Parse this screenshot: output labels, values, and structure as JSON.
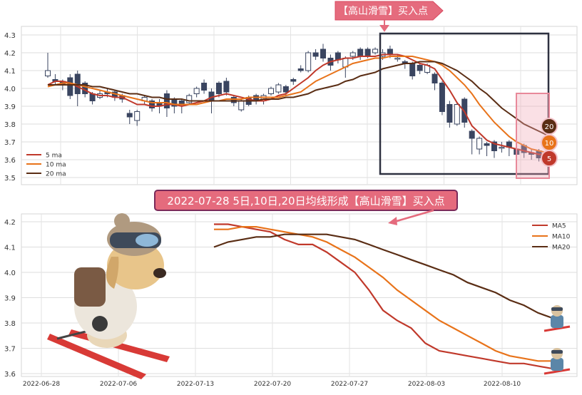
{
  "banner_top": "【高山滑雪】买入点",
  "banner_mid": "2022-07-28 5日,10日,20日均线形成【高山滑雪】买入点",
  "badges": [
    "20",
    "10",
    "5"
  ],
  "colors": {
    "ma5": "#c0392b",
    "ma10": "#e8731a",
    "ma20": "#5a2d14",
    "candle_dark": "#3a4560",
    "banner_fill": "#e56b7d",
    "box_dark": "#2e3140",
    "box_pink": "#f0a7b4"
  },
  "chart_data": [
    {
      "type": "candlestick",
      "yticks": [
        "3.5",
        "3.6",
        "3.7",
        "3.8",
        "3.9",
        "4.0",
        "4.1",
        "4.2",
        "4.3"
      ],
      "ylim": [
        3.46,
        4.33
      ],
      "legend": [
        "5 ma",
        "10 ma",
        "20 ma"
      ],
      "legend_position": "lower-left",
      "grid": true,
      "candles": [
        [
          4.07,
          4.1,
          4.2,
          4.06
        ],
        [
          4.05,
          4.04,
          4.08,
          4.02
        ],
        [
          4.04,
          4.02,
          4.05,
          3.99
        ],
        [
          4.06,
          3.96,
          4.08,
          3.94
        ],
        [
          4.08,
          3.97,
          4.1,
          3.9
        ],
        [
          4.03,
          3.97,
          4.04,
          3.95
        ],
        [
          3.97,
          3.93,
          3.98,
          3.91
        ],
        [
          3.95,
          3.97,
          3.99,
          3.94
        ],
        [
          3.98,
          3.97,
          4.0,
          3.95
        ],
        [
          3.98,
          3.95,
          3.99,
          3.93
        ],
        [
          3.96,
          3.94,
          3.97,
          3.92
        ],
        [
          3.86,
          3.84,
          3.88,
          3.8
        ],
        [
          3.82,
          3.87,
          3.88,
          3.79
        ],
        [
          3.93,
          3.95,
          3.96,
          3.91
        ],
        [
          3.93,
          3.89,
          3.94,
          3.87
        ],
        [
          3.92,
          3.9,
          3.94,
          3.86
        ],
        [
          3.97,
          3.89,
          3.99,
          3.84
        ],
        [
          3.94,
          3.9,
          3.95,
          3.86
        ],
        [
          3.93,
          3.91,
          3.94,
          3.86
        ],
        [
          3.92,
          3.96,
          3.97,
          3.91
        ],
        [
          3.97,
          4.0,
          4.01,
          3.95
        ],
        [
          4.03,
          3.99,
          4.05,
          3.97
        ],
        [
          3.98,
          3.93,
          4.0,
          3.86
        ],
        [
          4.03,
          3.97,
          4.04,
          3.95
        ],
        [
          4.04,
          3.98,
          4.06,
          3.96
        ],
        [
          3.95,
          3.92,
          3.96,
          3.9
        ],
        [
          3.88,
          3.93,
          3.94,
          3.87
        ],
        [
          3.95,
          3.91,
          3.96,
          3.9
        ],
        [
          3.96,
          3.93,
          3.97,
          3.91
        ],
        [
          3.93,
          3.96,
          3.97,
          3.91
        ],
        [
          3.97,
          4.0,
          4.01,
          3.96
        ],
        [
          3.98,
          4.02,
          4.03,
          3.97
        ],
        [
          4.01,
          3.98,
          4.02,
          3.96
        ],
        [
          4.05,
          4.04,
          4.06,
          4.02
        ],
        [
          4.11,
          4.1,
          4.13,
          4.09
        ],
        [
          4.1,
          4.2,
          4.21,
          4.09
        ],
        [
          4.2,
          4.18,
          4.22,
          4.16
        ],
        [
          4.22,
          4.17,
          4.25,
          4.15
        ],
        [
          4.17,
          4.13,
          4.19,
          4.1
        ],
        [
          4.2,
          4.16,
          4.21,
          4.14
        ],
        [
          4.12,
          4.17,
          4.18,
          4.06
        ],
        [
          4.18,
          4.2,
          4.21,
          4.16
        ],
        [
          4.22,
          4.18,
          4.23,
          4.16
        ],
        [
          4.22,
          4.18,
          4.23,
          4.17
        ],
        [
          4.2,
          4.22,
          4.23,
          4.19
        ],
        [
          4.18,
          4.2,
          4.22,
          4.16
        ],
        [
          4.22,
          4.19,
          4.24,
          4.17
        ],
        [
          4.17,
          4.17,
          4.19,
          4.15
        ],
        [
          4.15,
          4.14,
          4.16,
          4.11
        ],
        [
          4.14,
          4.07,
          4.15,
          4.05
        ],
        [
          4.13,
          4.1,
          4.14,
          4.08
        ],
        [
          4.09,
          4.13,
          4.14,
          4.08
        ],
        [
          4.08,
          4.03,
          4.09,
          3.99
        ],
        [
          4.03,
          3.87,
          4.04,
          3.85
        ],
        [
          3.91,
          3.81,
          3.93,
          3.78
        ],
        [
          3.8,
          3.91,
          3.92,
          3.79
        ],
        [
          3.94,
          3.81,
          3.95,
          3.78
        ],
        [
          3.76,
          3.72,
          3.77,
          3.63
        ],
        [
          3.66,
          3.72,
          3.73,
          3.63
        ],
        [
          3.69,
          3.68,
          3.7,
          3.62
        ],
        [
          3.7,
          3.65,
          3.71,
          3.61
        ],
        [
          3.67,
          3.67,
          3.7,
          3.64
        ],
        [
          3.7,
          3.67,
          3.71,
          3.62
        ],
        [
          3.66,
          3.63,
          3.7,
          3.61
        ],
        [
          3.68,
          3.64,
          3.69,
          3.61
        ],
        [
          3.64,
          3.63,
          3.66,
          3.6
        ],
        [
          3.65,
          3.61,
          3.66,
          3.59
        ],
        [
          3.64,
          3.63,
          3.65,
          3.61
        ]
      ],
      "series": [
        {
          "name": "5 ma",
          "values": [
            4.02,
            4.04,
            4.04,
            4.03,
            4.01,
            3.99,
            3.97,
            3.96,
            3.96,
            3.95,
            3.95,
            3.93,
            3.91,
            3.91,
            3.9,
            3.9,
            3.91,
            3.91,
            3.9,
            3.91,
            3.92,
            3.93,
            3.95,
            3.96,
            3.97,
            3.96,
            3.95,
            3.94,
            3.93,
            3.93,
            3.94,
            3.96,
            3.97,
            4.0,
            4.03,
            4.06,
            4.1,
            4.13,
            4.15,
            4.16,
            4.17,
            4.17,
            4.18,
            4.18,
            4.18,
            4.19,
            4.19,
            4.19,
            4.18,
            4.16,
            4.14,
            4.13,
            4.11,
            4.05,
            3.99,
            3.92,
            3.87,
            3.79,
            3.75,
            3.71,
            3.69,
            3.68,
            3.67,
            3.66,
            3.65,
            3.64,
            3.63,
            3.63
          ]
        },
        {
          "name": "10 ma",
          "values": [
            4.01,
            4.02,
            4.03,
            4.03,
            4.02,
            4.01,
            4.0,
            3.99,
            3.98,
            3.97,
            3.96,
            3.95,
            3.94,
            3.93,
            3.92,
            3.92,
            3.92,
            3.91,
            3.91,
            3.91,
            3.91,
            3.92,
            3.93,
            3.93,
            3.94,
            3.94,
            3.94,
            3.95,
            3.95,
            3.95,
            3.95,
            3.95,
            3.96,
            3.97,
            3.98,
            4.01,
            4.04,
            4.06,
            4.08,
            4.1,
            4.12,
            4.14,
            4.15,
            4.16,
            4.17,
            4.17,
            4.18,
            4.18,
            4.18,
            4.18,
            4.17,
            4.16,
            4.15,
            4.13,
            4.1,
            4.06,
            4.02,
            3.97,
            3.91,
            3.86,
            3.81,
            3.77,
            3.73,
            3.7,
            3.68,
            3.66,
            3.65,
            3.64
          ]
        },
        {
          "name": "20 ma",
          "values": [
            4.02,
            4.02,
            4.02,
            4.02,
            4.02,
            4.02,
            4.01,
            4.01,
            4.0,
            3.99,
            3.98,
            3.97,
            3.97,
            3.96,
            3.95,
            3.95,
            3.94,
            3.94,
            3.94,
            3.93,
            3.93,
            3.93,
            3.93,
            3.93,
            3.93,
            3.93,
            3.93,
            3.93,
            3.93,
            3.94,
            3.94,
            3.94,
            3.95,
            3.95,
            3.96,
            3.97,
            3.99,
            4.0,
            4.01,
            4.02,
            4.04,
            4.05,
            4.07,
            4.08,
            4.09,
            4.11,
            4.12,
            4.13,
            4.14,
            4.14,
            4.15,
            4.15,
            4.15,
            4.14,
            4.12,
            4.1,
            4.07,
            4.04,
            4.0,
            3.97,
            3.93,
            3.89,
            3.86,
            3.83,
            3.8,
            3.78,
            3.76,
            3.74
          ]
        }
      ]
    },
    {
      "type": "line",
      "xticks": [
        "2022-06-28",
        "2022-07-06",
        "2022-07-13",
        "2022-07-20",
        "2022-07-27",
        "2022-08-03",
        "2022-08-10"
      ],
      "yticks": [
        "3.6",
        "3.7",
        "3.8",
        "3.9",
        "4.0",
        "4.1",
        "4.2"
      ],
      "ylim": [
        3.58,
        4.22
      ],
      "legend_position": "top-right",
      "grid": true,
      "series": [
        {
          "name": "MA5",
          "values": [
            4.19,
            4.19,
            4.18,
            4.17,
            4.16,
            4.13,
            4.11,
            4.11,
            4.08,
            4.04,
            4.0,
            3.93,
            3.85,
            3.81,
            3.78,
            3.72,
            3.69,
            3.68,
            3.67,
            3.66,
            3.65,
            3.64,
            3.64,
            3.63,
            3.62
          ]
        },
        {
          "name": "MA10",
          "values": [
            4.17,
            4.17,
            4.18,
            4.18,
            4.17,
            4.16,
            4.15,
            4.14,
            4.12,
            4.09,
            4.06,
            4.02,
            3.98,
            3.93,
            3.89,
            3.85,
            3.81,
            3.78,
            3.75,
            3.72,
            3.69,
            3.67,
            3.66,
            3.65,
            3.65
          ]
        },
        {
          "name": "MA20",
          "values": [
            4.1,
            4.12,
            4.13,
            4.14,
            4.14,
            4.15,
            4.15,
            4.15,
            4.15,
            4.14,
            4.13,
            4.11,
            4.09,
            4.07,
            4.05,
            4.03,
            4.01,
            3.99,
            3.96,
            3.94,
            3.92,
            3.89,
            3.87,
            3.84,
            3.82
          ]
        }
      ]
    }
  ]
}
